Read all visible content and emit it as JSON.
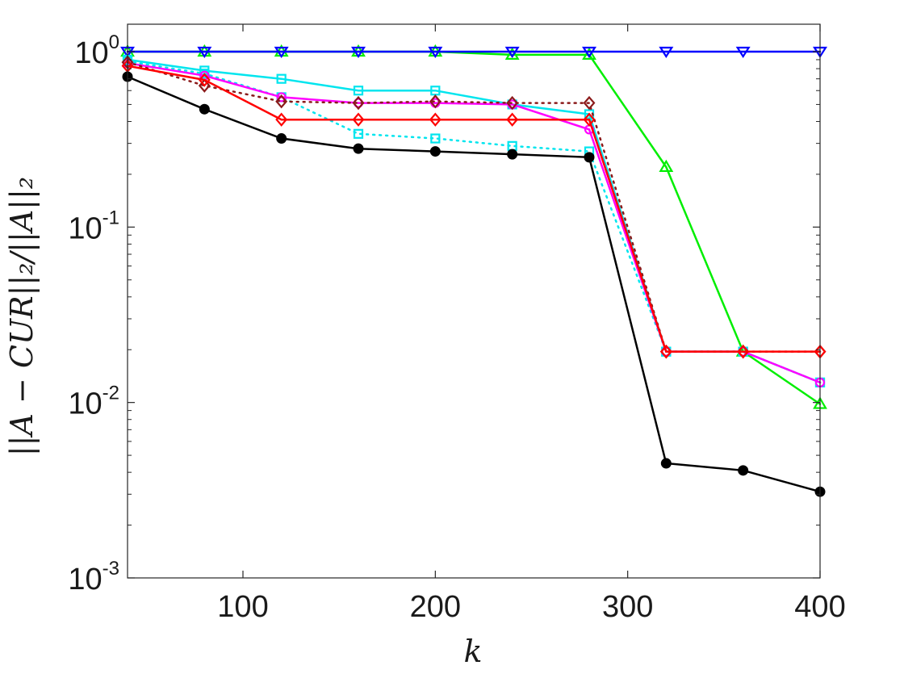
{
  "chart_data": {
    "type": "line",
    "title": "",
    "xlabel": "k",
    "ylabel": "||A − CUR||₂/||A||₂",
    "xlim": [
      40,
      400
    ],
    "ylim": [
      0.001,
      1.25
    ],
    "yscale": "log",
    "grid": false,
    "x_ticks": [
      "100",
      "200",
      "300",
      "400"
    ],
    "y_ticks": [
      {
        "base": "10",
        "exp": "0",
        "value": 1
      },
      {
        "base": "10",
        "exp": "-1",
        "value": 0.1
      },
      {
        "base": "10",
        "exp": "-2",
        "value": 0.01
      },
      {
        "base": "10",
        "exp": "-3",
        "value": 0.001
      }
    ],
    "x": [
      40,
      80,
      120,
      160,
      200,
      240,
      280,
      320,
      360,
      400
    ],
    "series": [
      {
        "color": "#00ee00",
        "line": "solid",
        "marker": "triangle-up",
        "values": [
          1.0,
          1.0,
          1.0,
          1.0,
          1.0,
          0.96,
          0.96,
          0.22,
          0.0195,
          0.0098
        ]
      },
      {
        "color": "#0000ff",
        "line": "solid",
        "marker": "triangle-down",
        "values": [
          1.0,
          1.0,
          1.0,
          1.0,
          1.0,
          1.0,
          1.0,
          1.0,
          1.0,
          1.0
        ]
      },
      {
        "color": "#00e5ee",
        "line": "solid",
        "marker": "square",
        "values": [
          0.9,
          0.78,
          0.7,
          0.6,
          0.6,
          0.5,
          0.44,
          0.0195,
          0.0195,
          0.013
        ]
      },
      {
        "color": "#00e5ee",
        "line": "dotted",
        "marker": "square",
        "values": [
          0.88,
          0.75,
          0.55,
          0.34,
          0.32,
          0.29,
          0.27,
          0.0195,
          0.0195,
          0.013
        ]
      },
      {
        "color": "#ff00ff",
        "line": "solid",
        "marker": "circle",
        "values": [
          0.86,
          0.73,
          0.55,
          0.51,
          0.51,
          0.5,
          0.36,
          0.0195,
          0.0195,
          0.013
        ]
      },
      {
        "color": "#8b1a1a",
        "line": "dotted",
        "marker": "diamond",
        "values": [
          0.87,
          0.64,
          0.52,
          0.51,
          0.52,
          0.51,
          0.51,
          0.0195,
          0.0195,
          0.0195
        ]
      },
      {
        "color": "#ff0000",
        "line": "solid",
        "marker": "diamond",
        "values": [
          0.83,
          0.69,
          0.41,
          0.41,
          0.41,
          0.41,
          0.41,
          0.0195,
          0.0195,
          0.0195
        ]
      },
      {
        "color": "#000000",
        "line": "solid",
        "marker": "filled-circle",
        "values": [
          0.72,
          0.47,
          0.32,
          0.28,
          0.27,
          0.26,
          0.25,
          0.0045,
          0.0041,
          0.0031
        ]
      }
    ]
  }
}
